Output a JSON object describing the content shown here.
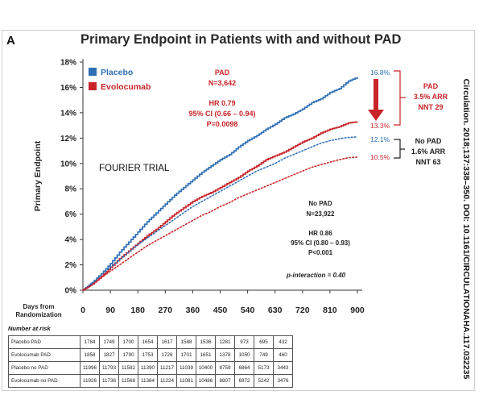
{
  "panel_label": "A",
  "citation": "Circulation. 2018;137:338–350. DOI: 10.1161/CIRCULATIONAHA.117.032235",
  "chart_data": {
    "type": "line",
    "title": "Primary Endpoint in Patients with and without PAD",
    "xlabel": "Days from Randomization",
    "ylabel": "Primary Endpoint",
    "xlim": [
      0,
      900
    ],
    "ylim": [
      0,
      18
    ],
    "x_ticks": [
      0,
      90,
      180,
      270,
      360,
      450,
      540,
      630,
      720,
      810,
      900
    ],
    "y_ticks": [
      0,
      2,
      4,
      6,
      8,
      10,
      12,
      14,
      16,
      18
    ],
    "y_tick_labels": [
      "0%",
      "2%",
      "4%",
      "6%",
      "8%",
      "10%",
      "12%",
      "14%",
      "16%",
      "18%"
    ],
    "legend": {
      "position": "top-left",
      "items": [
        {
          "label": "Placebo",
          "color": "#2e6fb6"
        },
        {
          "label": "Evolocumab",
          "color": "#c8242a"
        }
      ]
    },
    "series": [
      {
        "name": "Placebo PAD",
        "color": "#2e6fb6",
        "style": "solid",
        "x": [
          0,
          10,
          30,
          60,
          90,
          120,
          150,
          180,
          210,
          240,
          270,
          300,
          330,
          360,
          390,
          420,
          450,
          480,
          510,
          540,
          570,
          600,
          630,
          660,
          690,
          720,
          750,
          780,
          810,
          840,
          870,
          900
        ],
        "y": [
          0,
          0.2,
          0.6,
          1.3,
          2.1,
          3.0,
          3.8,
          4.6,
          5.4,
          6.1,
          6.8,
          7.5,
          8.1,
          8.7,
          9.3,
          9.8,
          10.3,
          10.7,
          11.3,
          11.8,
          12.2,
          12.7,
          13.1,
          13.6,
          13.9,
          14.3,
          14.8,
          15.1,
          15.6,
          15.9,
          16.5,
          16.8
        ]
      },
      {
        "name": "Evolocumab PAD",
        "color": "#c8242a",
        "style": "solid",
        "x": [
          0,
          10,
          30,
          60,
          90,
          120,
          150,
          180,
          210,
          240,
          270,
          300,
          330,
          360,
          390,
          420,
          450,
          480,
          510,
          540,
          570,
          600,
          630,
          660,
          690,
          720,
          750,
          780,
          810,
          840,
          870,
          900
        ],
        "y": [
          0,
          0.15,
          0.5,
          1.1,
          1.8,
          2.5,
          3.1,
          3.7,
          4.3,
          4.8,
          5.4,
          6.0,
          6.5,
          7.0,
          7.4,
          7.7,
          8.1,
          8.5,
          8.9,
          9.4,
          9.8,
          10.3,
          10.6,
          10.9,
          11.3,
          11.7,
          12.0,
          12.4,
          12.7,
          12.9,
          13.2,
          13.3
        ]
      },
      {
        "name": "Placebo no PAD",
        "color": "#2e6fb6",
        "style": "dotted",
        "x": [
          0,
          30,
          60,
          90,
          120,
          150,
          180,
          210,
          240,
          270,
          300,
          330,
          360,
          390,
          420,
          450,
          480,
          510,
          540,
          570,
          600,
          630,
          660,
          690,
          720,
          750,
          780,
          810,
          840,
          870,
          900
        ],
        "y": [
          0,
          0.5,
          1.2,
          1.8,
          2.4,
          3.0,
          3.6,
          4.1,
          4.6,
          5.1,
          5.6,
          6.1,
          6.6,
          7.0,
          7.4,
          7.8,
          8.2,
          8.6,
          9.0,
          9.4,
          9.7,
          10.0,
          10.4,
          10.7,
          11.0,
          11.3,
          11.6,
          11.8,
          11.95,
          12.05,
          12.1
        ]
      },
      {
        "name": "Evolocumab no PAD",
        "color": "#c8242a",
        "style": "dotted",
        "x": [
          0,
          30,
          60,
          90,
          120,
          150,
          180,
          210,
          240,
          270,
          300,
          330,
          360,
          390,
          420,
          450,
          480,
          510,
          540,
          570,
          600,
          630,
          660,
          690,
          720,
          750,
          780,
          810,
          840,
          870,
          900
        ],
        "y": [
          0,
          0.4,
          1.0,
          1.5,
          2.0,
          2.5,
          3.0,
          3.5,
          3.9,
          4.3,
          4.7,
          5.1,
          5.5,
          5.9,
          6.2,
          6.6,
          6.9,
          7.3,
          7.6,
          7.9,
          8.2,
          8.5,
          8.8,
          9.1,
          9.4,
          9.7,
          9.9,
          10.1,
          10.3,
          10.45,
          10.5
        ]
      }
    ],
    "end_labels": [
      {
        "text": "16.8%",
        "color": "#2e6fb6"
      },
      {
        "text": "13.3%",
        "color": "#c8242a"
      },
      {
        "text": "12.1%",
        "color": "#2e6fb6"
      },
      {
        "text": "10.5%",
        "color": "#c8242a"
      }
    ],
    "annotations": {
      "pad_block": [
        "PAD",
        "N=3,642",
        "HR 0.79",
        "95% CI (0.66 – 0.94)",
        "P=0.0098"
      ],
      "trial_label": "FOURIER TRIAL",
      "nopad_block": [
        "No PAD",
        "N=23,922",
        "HR 0.86",
        "95% CI (0.80 – 0.93)",
        "P<0.001"
      ],
      "p_interaction": "p-interaction = 0.40",
      "pad_effect": [
        "PAD",
        "3.5% ARR",
        "NNT 29"
      ],
      "nopad_effect": [
        "No PAD",
        "1.6% ARR",
        "NNT 63"
      ]
    },
    "risk_table": {
      "caption": "Number at risk",
      "rows": [
        {
          "label": "Placebo PAD",
          "values": [
            "1784",
            "1749",
            "1700",
            "1654",
            "1617",
            "1588",
            "1536",
            "1281",
            "973",
            "695",
            "432"
          ]
        },
        {
          "label": "Evolocumab PAD",
          "values": [
            "1858",
            "1827",
            "1790",
            "1753",
            "1726",
            "1701",
            "1651",
            "1378",
            "1050",
            "749",
            "460"
          ]
        },
        {
          "label": "Placebo no PAD",
          "values": [
            "11996",
            "11793",
            "11582",
            "11390",
            "11217",
            "11039",
            "10400",
            "8759",
            "6864",
            "5173",
            "3443"
          ]
        },
        {
          "label": "Evolocumab no PAD",
          "values": [
            "11926",
            "11736",
            "11568",
            "11384",
            "11224",
            "11081",
            "10486",
            "8807",
            "6972",
            "5242",
            "3476"
          ]
        }
      ]
    }
  }
}
